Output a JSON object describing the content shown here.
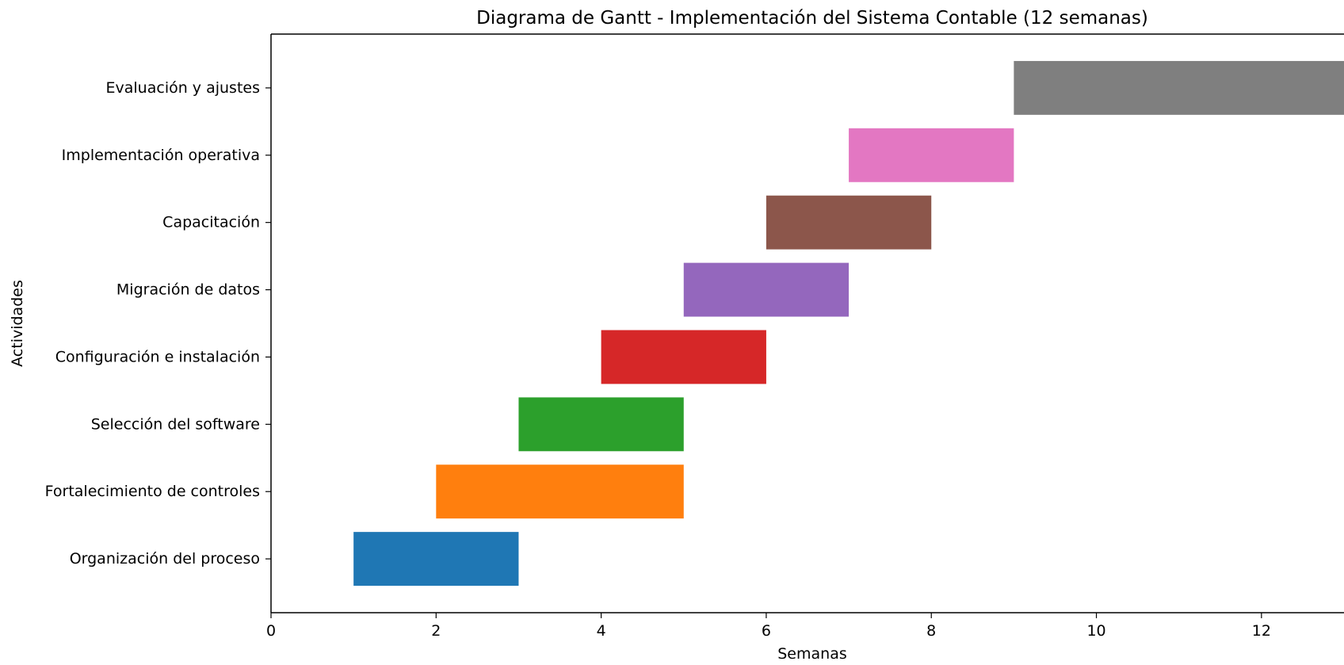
{
  "chart_data": {
    "type": "gantt",
    "title": "Diagrama de Gantt - Implementación del Sistema Contable (12 semanas)",
    "xlabel": "Semanas",
    "ylabel": "Actividades",
    "xlim": [
      0,
      13
    ],
    "xticks": [
      0,
      2,
      4,
      6,
      8,
      10,
      12
    ],
    "grid": false,
    "tasks": [
      {
        "name": "Organización del proceso",
        "start": 1,
        "end": 3,
        "color": "#1f77b4"
      },
      {
        "name": "Fortalecimiento de controles",
        "start": 2,
        "end": 5,
        "color": "#ff7f0e"
      },
      {
        "name": "Selección del software",
        "start": 3,
        "end": 5,
        "color": "#2ca02c"
      },
      {
        "name": "Configuración e instalación",
        "start": 4,
        "end": 6,
        "color": "#d62728"
      },
      {
        "name": "Migración de datos",
        "start": 5,
        "end": 7,
        "color": "#9467bd"
      },
      {
        "name": "Capacitación",
        "start": 6,
        "end": 8,
        "color": "#8c564b"
      },
      {
        "name": "Implementación operativa",
        "start": 7,
        "end": 9,
        "color": "#e377c2"
      },
      {
        "name": "Evaluación y ajustes",
        "start": 9,
        "end": 13,
        "color": "#7f7f7f"
      }
    ]
  }
}
